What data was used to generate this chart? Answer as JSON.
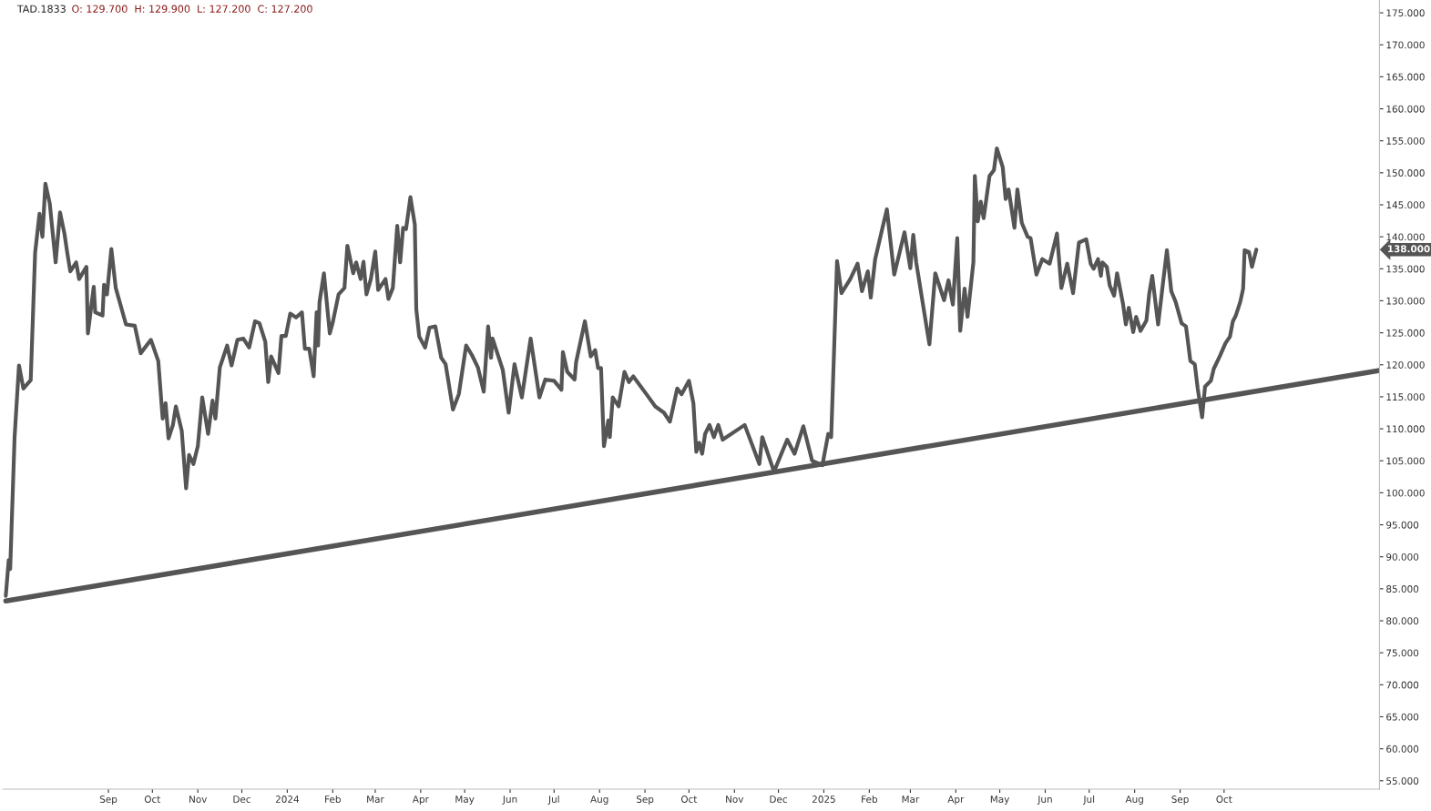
{
  "chart_data": {
    "type": "line",
    "title": "TAD.1833",
    "subtitle": "O: 129.700  H: 129.900  L: 127.200  C: 127.200",
    "xlim": [
      "2023-06-21",
      "2026-01-15"
    ],
    "ylim": [
      53.7,
      177
    ],
    "xticks": [
      {
        "value": "2023-09-01",
        "label": "Sep"
      },
      {
        "value": "2023-10-01",
        "label": "Oct"
      },
      {
        "value": "2023-11-01",
        "label": "Nov"
      },
      {
        "value": "2023-12-01",
        "label": "Dec"
      },
      {
        "value": "2024-01-01",
        "label": "2024"
      },
      {
        "value": "2024-02-01",
        "label": "Feb"
      },
      {
        "value": "2024-03-01",
        "label": "Mar"
      },
      {
        "value": "2024-04-01",
        "label": "Apr"
      },
      {
        "value": "2024-05-01",
        "label": "May"
      },
      {
        "value": "2024-06-01",
        "label": "Jun"
      },
      {
        "value": "2024-07-01",
        "label": "Jul"
      },
      {
        "value": "2024-08-01",
        "label": "Aug"
      },
      {
        "value": "2024-09-01",
        "label": "Sep"
      },
      {
        "value": "2024-10-01",
        "label": "Oct"
      },
      {
        "value": "2024-11-01",
        "label": "Nov"
      },
      {
        "value": "2024-12-01",
        "label": "Dec"
      },
      {
        "value": "2025-01-01",
        "label": "2025"
      },
      {
        "value": "2025-02-01",
        "label": "Feb"
      },
      {
        "value": "2025-03-01",
        "label": "Mar"
      },
      {
        "value": "2025-04-01",
        "label": "Apr"
      },
      {
        "value": "2025-05-01",
        "label": "May"
      },
      {
        "value": "2025-06-01",
        "label": "Jun"
      },
      {
        "value": "2025-07-01",
        "label": "Jul"
      },
      {
        "value": "2025-08-01",
        "label": "Aug"
      },
      {
        "value": "2025-09-01",
        "label": "Sep"
      },
      {
        "value": "2025-10-01",
        "label": "Oct"
      }
    ],
    "yticks": [
      {
        "value": 55,
        "label": "55.000"
      },
      {
        "value": 60,
        "label": "60.000"
      },
      {
        "value": 65,
        "label": "65.000"
      },
      {
        "value": 70,
        "label": "70.000"
      },
      {
        "value": 75,
        "label": "75.000"
      },
      {
        "value": 80,
        "label": "80.000"
      },
      {
        "value": 85,
        "label": "85.000"
      },
      {
        "value": 90,
        "label": "90.000"
      },
      {
        "value": 95,
        "label": "95.000"
      },
      {
        "value": 100,
        "label": "100.000"
      },
      {
        "value": 105,
        "label": "105.000"
      },
      {
        "value": 110,
        "label": "110.000"
      },
      {
        "value": 115,
        "label": "115.000"
      },
      {
        "value": 120,
        "label": "120.000"
      },
      {
        "value": 125,
        "label": "125.000"
      },
      {
        "value": 130,
        "label": "130.000"
      },
      {
        "value": 135,
        "label": "135.000"
      },
      {
        "value": 140,
        "label": "140.000"
      },
      {
        "value": 145,
        "label": "145.000"
      },
      {
        "value": 150,
        "label": "150.000"
      },
      {
        "value": 155,
        "label": "155.000"
      },
      {
        "value": 160,
        "label": "160.000"
      },
      {
        "value": 165,
        "label": "165.000"
      },
      {
        "value": 170,
        "label": "170.000"
      },
      {
        "value": 175,
        "label": "175.000"
      }
    ],
    "grid": false,
    "marker": "none",
    "line_style": "solid",
    "annotations": [
      "138.000"
    ],
    "series": [
      {
        "color": "#555555",
        "x": [
          "2023-06-23",
          "2023-06-25",
          "2023-06-26",
          "2023-06-29",
          "2023-07-02",
          "2023-07-05",
          "2023-07-10",
          "2023-07-13",
          "2023-07-16",
          "2023-07-18",
          "2023-07-20",
          "2023-07-23",
          "2023-07-27",
          "2023-07-30",
          "2023-08-02",
          "2023-08-04",
          "2023-08-06",
          "2023-08-10",
          "2023-08-12",
          "2023-08-17",
          "2023-08-18",
          "2023-08-22",
          "2023-08-23",
          "2023-08-28",
          "2023-08-29",
          "2023-08-31",
          "2023-09-03",
          "2023-09-06",
          "2023-09-13",
          "2023-09-19",
          "2023-09-23",
          "2023-09-30",
          "2023-10-05",
          "2023-10-08",
          "2023-10-10",
          "2023-10-12",
          "2023-10-15",
          "2023-10-17",
          "2023-10-21",
          "2023-10-24",
          "2023-10-26",
          "2023-10-29",
          "2023-11-01",
          "2023-11-04",
          "2023-11-08",
          "2023-11-11",
          "2023-11-13",
          "2023-11-16",
          "2023-11-21",
          "2023-11-24",
          "2023-11-28",
          "2023-12-02",
          "2023-12-06",
          "2023-12-10",
          "2023-12-13",
          "2023-12-17",
          "2023-12-19",
          "2023-12-21",
          "2023-12-26",
          "2023-12-28",
          "2023-12-31",
          "2024-01-03",
          "2024-01-07",
          "2024-01-11",
          "2024-01-13",
          "2024-01-16",
          "2024-01-19",
          "2024-01-21",
          "2024-01-22",
          "2024-01-23",
          "2024-01-26",
          "2024-01-30",
          "2024-02-01",
          "2024-02-05",
          "2024-02-09",
          "2024-02-11",
          "2024-02-14",
          "2024-02-15",
          "2024-02-17",
          "2024-02-20",
          "2024-02-22",
          "2024-02-24",
          "2024-02-27",
          "2024-03-01",
          "2024-03-03",
          "2024-03-08",
          "2024-03-10",
          "2024-03-13",
          "2024-03-16",
          "2024-03-18",
          "2024-03-20",
          "2024-03-22",
          "2024-03-25",
          "2024-03-28",
          "2024-03-29",
          "2024-03-31",
          "2024-04-04",
          "2024-04-07",
          "2024-04-11",
          "2024-04-15",
          "2024-04-18",
          "2024-04-23",
          "2024-04-27",
          "2024-05-02",
          "2024-05-06",
          "2024-05-10",
          "2024-05-14",
          "2024-05-17",
          "2024-05-19",
          "2024-05-20",
          "2024-05-27",
          "2024-05-31",
          "2024-06-04",
          "2024-06-09",
          "2024-06-15",
          "2024-06-21",
          "2024-06-25",
          "2024-07-01",
          "2024-07-06",
          "2024-07-07",
          "2024-07-10",
          "2024-07-15",
          "2024-07-16",
          "2024-07-22",
          "2024-07-26",
          "2024-07-29",
          "2024-07-31",
          "2024-08-02",
          "2024-08-04",
          "2024-08-07",
          "2024-08-08",
          "2024-08-10",
          "2024-08-14",
          "2024-08-18",
          "2024-08-21",
          "2024-08-24",
          "2024-09-02",
          "2024-09-08",
          "2024-09-14",
          "2024-09-18",
          "2024-09-23",
          "2024-09-26",
          "2024-10-01",
          "2024-10-04",
          "2024-10-06",
          "2024-10-08",
          "2024-10-10",
          "2024-10-12",
          "2024-10-15",
          "2024-10-18",
          "2024-10-21",
          "2024-10-24",
          "2024-11-08",
          "2024-11-18",
          "2024-11-20",
          "2024-11-28",
          "2024-12-07",
          "2024-12-12",
          "2024-12-18",
          "2024-12-24",
          "2024-12-31",
          "2025-01-04",
          "2025-01-06",
          "2025-01-10",
          "2025-01-13",
          "2025-01-19",
          "2025-01-24",
          "2025-01-27",
          "2025-01-31",
          "2025-02-02",
          "2025-02-05",
          "2025-02-10",
          "2025-02-13",
          "2025-02-18",
          "2025-02-25",
          "2025-03-01",
          "2025-03-03",
          "2025-03-05",
          "2025-03-14",
          "2025-03-18",
          "2025-03-24",
          "2025-03-27",
          "2025-03-30",
          "2025-04-02",
          "2025-04-04",
          "2025-04-07",
          "2025-04-09",
          "2025-04-13",
          "2025-04-14",
          "2025-04-16",
          "2025-04-18",
          "2025-04-20",
          "2025-04-24",
          "2025-04-27",
          "2025-04-29",
          "2025-05-03",
          "2025-05-05",
          "2025-05-07",
          "2025-05-11",
          "2025-05-13",
          "2025-05-16",
          "2025-05-20",
          "2025-05-22",
          "2025-05-26",
          "2025-05-30",
          "2025-06-04",
          "2025-06-09",
          "2025-06-12",
          "2025-06-16",
          "2025-06-20",
          "2025-06-24",
          "2025-06-29",
          "2025-07-02",
          "2025-07-04",
          "2025-07-07",
          "2025-07-09",
          "2025-07-10",
          "2025-07-13",
          "2025-07-15",
          "2025-07-18",
          "2025-07-20",
          "2025-07-24",
          "2025-07-26",
          "2025-07-28",
          "2025-07-31",
          "2025-08-02",
          "2025-08-05",
          "2025-08-09",
          "2025-08-11",
          "2025-08-13",
          "2025-08-17",
          "2025-08-21",
          "2025-08-23",
          "2025-08-26",
          "2025-08-29",
          "2025-09-02",
          "2025-09-05",
          "2025-09-08",
          "2025-09-11",
          "2025-09-13",
          "2025-09-16",
          "2025-09-18",
          "2025-09-22",
          "2025-09-24",
          "2025-09-28",
          "2025-10-02",
          "2025-10-05",
          "2025-10-07",
          "2025-10-09",
          "2025-10-12",
          "2025-10-14",
          "2025-10-15",
          "2025-10-18",
          "2025-10-20",
          "2025-10-23"
        ],
        "values": [
          83.9,
          89.5,
          88.1,
          108.7,
          119.9,
          116.3,
          117.6,
          137.5,
          143.6,
          140,
          148.3,
          145.2,
          136.0,
          143.8,
          140.5,
          137.4,
          134.6,
          136.0,
          133.4,
          135.3,
          124.9,
          132.2,
          128.2,
          127.7,
          132.5,
          131.0,
          138.1,
          132.0,
          126.3,
          126.1,
          121.8,
          123.9,
          120.6,
          111.6,
          114.0,
          108.5,
          110.6,
          113.5,
          109.7,
          100.7,
          105.9,
          104.5,
          107.3,
          114.9,
          109.2,
          114.4,
          111.6,
          119.6,
          123.0,
          119.9,
          123.9,
          124.1,
          122.7,
          126.8,
          126.5,
          123.6,
          117.3,
          121.3,
          118.7,
          124.5,
          124.5,
          128.0,
          127.4,
          128.2,
          122.5,
          122.5,
          118.2,
          128.2,
          123.0,
          129.8,
          134.3,
          124.9,
          126.6,
          131.0,
          132.0,
          138.6,
          135.3,
          134.3,
          136.0,
          133.4,
          136.1,
          131.0,
          133.4,
          137.7,
          131.7,
          133.4,
          130.3,
          132.0,
          141.7,
          136.0,
          141.4,
          141.2,
          146.2,
          141.9,
          128.7,
          124.4,
          122.7,
          125.8,
          126.0,
          121.1,
          120.1,
          113.0,
          115.4,
          123.0,
          121.5,
          119.6,
          115.8,
          126.0,
          121.1,
          124.1,
          119.2,
          112.5,
          120.1,
          114.9,
          124.1,
          114.9,
          117.7,
          117.5,
          116.1,
          122.0,
          118.9,
          117.7,
          120.4,
          126.8,
          121.3,
          122.3,
          119.5,
          119.5,
          107.3,
          111.3,
          108.7,
          114.9,
          113.5,
          118.9,
          117.3,
          118.2,
          115.4,
          113.5,
          112.5,
          111.1,
          116.3,
          115.4,
          117.5,
          114.0,
          106.4,
          107.8,
          106.1,
          109.2,
          110.6,
          108.7,
          110.6,
          108.3,
          110.6,
          104.5,
          108.7,
          103.3,
          108.3,
          106.1,
          110.4,
          105.0,
          104.3,
          109.2,
          108.7,
          136.2,
          131.2,
          133.4,
          135.8,
          131.5,
          134.6,
          130.5,
          136.5,
          141.4,
          144.3,
          134.1,
          140.7,
          135.1,
          140.3,
          136.0,
          123.2,
          134.3,
          130.1,
          133.2,
          129.4,
          139.8,
          125.3,
          131.9,
          127.5,
          136.0,
          149.5,
          142.4,
          145.5,
          142.9,
          149.5,
          150.4,
          153.8,
          150.9,
          145.9,
          147.4,
          141.4,
          147.4,
          142.2,
          140.0,
          139.8,
          134.1,
          136.5,
          135.8,
          140.5,
          132.0,
          135.8,
          131.2,
          139.1,
          139.6,
          135.8,
          135.0,
          136.5,
          133.9,
          136.0,
          135.3,
          132.4,
          130.8,
          134.3,
          129.6,
          126.3,
          128.9,
          125.1,
          127.5,
          125.3,
          126.9,
          131.2,
          133.9,
          126.3,
          134.1,
          137.9,
          131.5,
          129.8,
          126.5,
          126.0,
          120.6,
          120.1,
          116.3,
          111.8,
          116.6,
          117.5,
          119.4,
          121.3,
          123.4,
          124.4,
          126.8,
          127.7,
          129.8,
          131.9,
          137.9,
          137.6,
          135.3,
          138.0
        ]
      },
      {
        "type": "line",
        "color": "#555555",
        "x": [
          "2023-06-23",
          "2026-01-15"
        ],
        "values": [
          83.1,
          119.1
        ]
      }
    ]
  }
}
